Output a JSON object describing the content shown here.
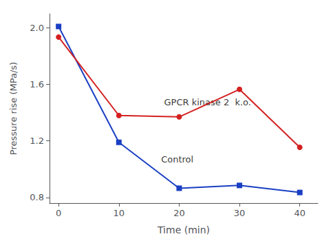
{
  "chart_data": {
    "type": "line",
    "x": [
      0,
      10,
      20,
      30,
      40
    ],
    "series": [
      {
        "color": "#1a3fc4",
        "marker": "square",
        "values": [
          2.01,
          1.19,
          0.865,
          0.885,
          0.835
        ]
      },
      {
        "color": "#d42020",
        "marker": "circle",
        "values": [
          1.935,
          1.38,
          1.37,
          1.565,
          1.155
        ]
      }
    ],
    "xlabel": "Time (min)",
    "ylabel": "Pressure rise (MPa/s)",
    "xlim": [
      -1.5,
      43
    ],
    "ylim": [
      0.76,
      2.1
    ],
    "xticks": [
      0,
      10,
      20,
      30,
      40
    ],
    "yticks": [
      0.8,
      1.2,
      1.6,
      {
        "value": 2,
        "label": "2.0"
      }
    ],
    "annotations": [
      {
        "text": "GPCR kinase 2  k.o.",
        "x": 17.5,
        "y": 1.44
      },
      {
        "text": "Control",
        "x": 17,
        "y": 1.04
      }
    ],
    "grid": false
  }
}
